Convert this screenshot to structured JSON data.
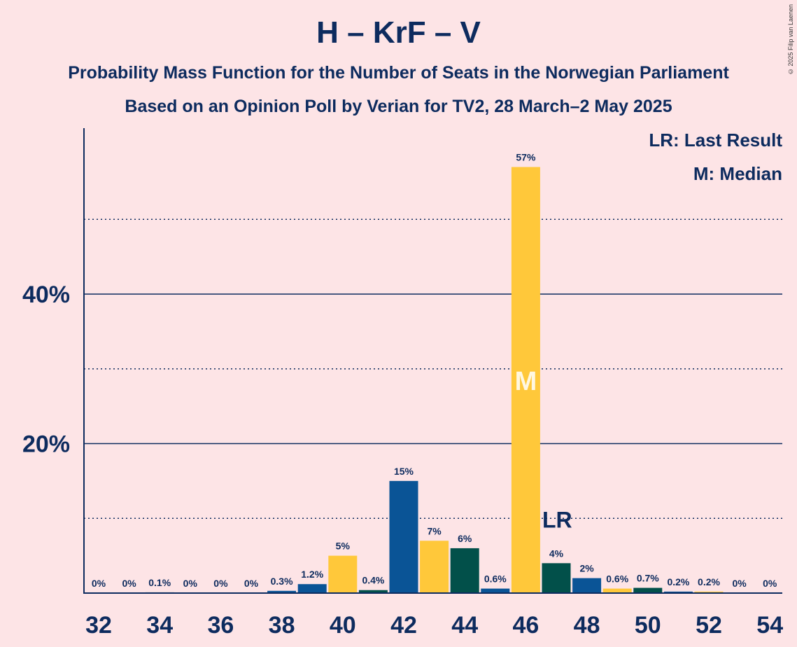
{
  "title": "H – KrF – V",
  "subtitle1": "Probability Mass Function for the Number of Seats in the Norwegian Parliament",
  "subtitle2": "Based on an Opinion Poll by Verian for TV2, 28 March–2 May 2025",
  "copyright": "© 2025 Filip van Laenen",
  "legend": {
    "last_result": "LR: Last Result",
    "median": "M: Median"
  },
  "colors": {
    "blue": "#0a5496",
    "yellow": "#ffc83a",
    "green": "#02504a",
    "axis": "#0d2b5e",
    "background": "#fde4e6"
  },
  "chart_data": {
    "type": "bar",
    "categories": [
      32,
      33,
      34,
      35,
      36,
      37,
      38,
      39,
      40,
      41,
      42,
      43,
      44,
      45,
      46,
      47,
      48,
      49,
      50,
      51,
      52,
      53,
      54
    ],
    "values": [
      0,
      0,
      0.1,
      0,
      0,
      0,
      0.3,
      1.2,
      5,
      0.4,
      15,
      7,
      6,
      0.6,
      57,
      4,
      2,
      0.6,
      0.7,
      0.2,
      0.2,
      0,
      0
    ],
    "data_labels": [
      "0%",
      "0%",
      "0.1%",
      "0%",
      "0%",
      "0%",
      "0.3%",
      "1.2%",
      "5%",
      "0.4%",
      "15%",
      "7%",
      "6%",
      "0.6%",
      "57%",
      "4%",
      "2%",
      "0.6%",
      "0.7%",
      "0.2%",
      "0.2%",
      "0%",
      "0%"
    ],
    "bar_colors": [
      "blue",
      "yellow",
      "green",
      "blue",
      "yellow",
      "green",
      "blue",
      "blue",
      "yellow",
      "green",
      "blue",
      "yellow",
      "green",
      "blue",
      "yellow",
      "green",
      "blue",
      "yellow",
      "green",
      "blue",
      "yellow",
      "green",
      "blue"
    ],
    "xtick_labels": [
      "32",
      "34",
      "36",
      "38",
      "40",
      "42",
      "44",
      "46",
      "48",
      "50",
      "52",
      "54"
    ],
    "ytick_labels": [
      "20%",
      "40%"
    ],
    "ylim": [
      0,
      62
    ],
    "major_grid": [
      20,
      40
    ],
    "minor_grid": [
      10,
      30,
      50
    ],
    "median_seat": 46,
    "median_label": "M",
    "last_result_seat": 47,
    "last_result_label": "LR"
  }
}
